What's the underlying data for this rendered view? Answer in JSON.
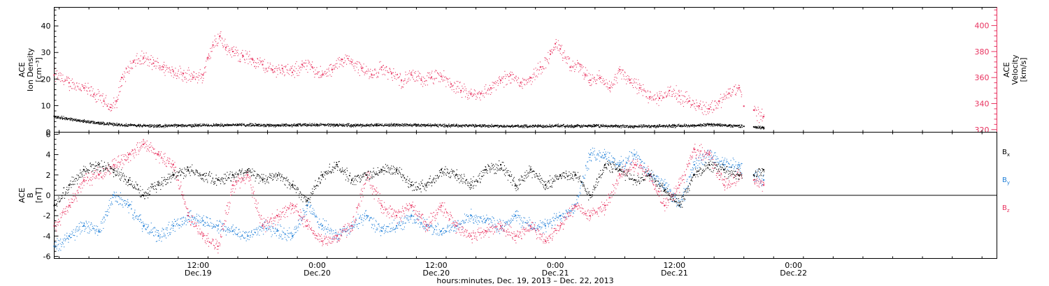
{
  "figure": {
    "xlabel": "hours:minutes, Dec. 19, 2013 – Dec. 22, 2013",
    "time_ticks": [
      {
        "hours": 12,
        "time": "12:00",
        "date": "Dec.19"
      },
      {
        "hours": 24,
        "time": "0:00",
        "date": "Dec.20"
      },
      {
        "hours": 36,
        "time": "12:00",
        "date": "Dec.20"
      },
      {
        "hours": 48,
        "time": "0:00",
        "date": "Dec.21"
      },
      {
        "hours": 60,
        "time": "12:00",
        "date": "Dec.21"
      },
      {
        "hours": 72,
        "time": "0:00",
        "date": "Dec.22"
      }
    ]
  },
  "colors": {
    "axis": "#000000",
    "density": "#000000",
    "velocity": "#e8325f",
    "bx": "#000000",
    "by": "#1f7fd8",
    "bz": "#e8325f"
  },
  "chart_data": [
    {
      "type": "scatter",
      "panel": "top",
      "ylabel_left": [
        "ACE",
        "Ion Density",
        "[cm⁻³]"
      ],
      "ylabel_right": [
        "ACE",
        "Velocity",
        "[km/s]"
      ],
      "xlim": [
        -2.5,
        92.5
      ],
      "ylim_left": [
        0,
        47
      ],
      "ylim_right": [
        318,
        414
      ],
      "yticks_left": [
        0,
        10,
        20,
        30,
        40
      ],
      "yticks_right": [
        320,
        340,
        360,
        380,
        400
      ],
      "series": [
        {
          "key": "velocity",
          "axis": "right",
          "x": [
            -2.5,
            -1,
            0.5,
            1.5,
            2.5,
            3.2,
            3.8,
            4.3,
            5.5,
            6.5,
            7.5,
            8.5,
            9.5,
            10.5,
            11.5,
            12.5,
            13,
            13.5,
            14.2,
            14.8,
            15.5,
            16.5,
            17.5,
            18.5,
            19.5,
            20.5,
            21.5,
            22.5,
            23.5,
            24.5,
            25.5,
            26.5,
            27.5,
            28.5,
            29.5,
            30.5,
            31.5,
            32.5,
            33.5,
            34.5,
            35.5,
            36.5,
            37.5,
            38.5,
            39.5,
            40.5,
            41.5,
            42.5,
            43.5,
            44.5,
            45.5,
            46.5,
            47.5,
            48,
            48.5,
            49.5,
            50.5,
            51,
            51.5,
            52.5,
            53.5,
            54.5,
            55.5,
            56.5,
            57.5,
            58.5,
            59.5,
            60.5,
            61.5,
            62.5,
            63.5,
            64.5,
            65.5,
            66.5,
            67,
            68,
            69
          ],
          "y": [
            362,
            356,
            352,
            347,
            342,
            337,
            342,
            360,
            372,
            375,
            371,
            368,
            365,
            363,
            360,
            362,
            375,
            385,
            392,
            383,
            380,
            377,
            374,
            370,
            366,
            367,
            364,
            370,
            368,
            362,
            366,
            374,
            372,
            367,
            362,
            368,
            363,
            358,
            362,
            358,
            360,
            361,
            355,
            350,
            347,
            348,
            352,
            358,
            362,
            356,
            360,
            368,
            378,
            386,
            382,
            368,
            370,
            362,
            358,
            360,
            352,
            366,
            358,
            352,
            345,
            344,
            350,
            346,
            342,
            338,
            336,
            342,
            348,
            352,
            338,
            335,
            330
          ]
        },
        {
          "key": "density",
          "axis": "left",
          "x": [
            -2.5,
            0,
            2,
            4,
            6,
            8,
            10,
            12,
            14,
            16,
            18,
            20,
            22,
            24,
            26,
            28,
            30,
            32,
            34,
            36,
            38,
            40,
            42,
            44,
            46,
            48,
            50,
            52,
            54,
            56,
            58,
            60,
            62,
            63.5,
            64.5,
            65.5,
            66.5,
            67,
            68,
            69
          ],
          "y": [
            6,
            4.5,
            3.5,
            3,
            2.6,
            2.5,
            2.6,
            2.7,
            2.8,
            2.9,
            2.8,
            2.7,
            2.8,
            2.9,
            2.8,
            2.7,
            2.8,
            2.9,
            2.8,
            2.7,
            2.6,
            2.6,
            2.5,
            2.4,
            2.4,
            2.5,
            2.4,
            2.5,
            2.4,
            2.3,
            2.4,
            2.5,
            2.6,
            3,
            2.8,
            2.6,
            2.5,
            2.2,
            2,
            1.8
          ]
        }
      ]
    },
    {
      "type": "scatter",
      "panel": "bottom",
      "ylabel_left": [
        "ACE",
        "B",
        "[nT]"
      ],
      "xlim": [
        -2.5,
        92.5
      ],
      "ylim": [
        -6.2,
        6.2
      ],
      "yticks": [
        -6,
        -4,
        -2,
        0,
        2,
        4,
        6
      ],
      "series": [
        {
          "key": "bx",
          "name": "B",
          "x": [
            -2.5,
            -1,
            0.5,
            2,
            3.5,
            5,
            6.5,
            8,
            9.5,
            11,
            12.5,
            14,
            15.5,
            17,
            18.5,
            20,
            21.5,
            23,
            24.5,
            26,
            27.5,
            29,
            30.5,
            32,
            33.5,
            35,
            36.5,
            38,
            39.5,
            41,
            42.5,
            44,
            45.5,
            47,
            48.5,
            50,
            51.5,
            53,
            54.5,
            56,
            57.5,
            59,
            60.5,
            62,
            63.5,
            65,
            66.5,
            68,
            69
          ],
          "y": [
            -1,
            1,
            2.5,
            3,
            2.5,
            1.5,
            0,
            1,
            2,
            2.5,
            2,
            1.5,
            2,
            2.5,
            1.5,
            2,
            1,
            -0.5,
            2,
            3,
            1.5,
            2,
            2.5,
            2.5,
            1,
            1,
            2.5,
            2,
            1,
            2.5,
            3,
            1,
            2.5,
            1,
            2,
            2,
            0,
            3,
            2.5,
            1.5,
            2,
            0.5,
            -1,
            2,
            3,
            2.5,
            2,
            2,
            2.5
          ]
        },
        {
          "key": "by",
          "name": "B",
          "x": [
            -2.5,
            -1,
            0.5,
            2,
            3.5,
            5,
            6.5,
            8,
            9.5,
            11,
            12.5,
            14,
            15.5,
            17,
            18.5,
            20,
            21.5,
            23,
            24.5,
            26,
            27.5,
            29,
            30.5,
            32,
            33.5,
            35,
            36.5,
            38,
            39.5,
            41,
            42.5,
            44,
            45.5,
            47,
            48.5,
            50,
            51.5,
            53,
            54.5,
            56,
            57.5,
            59,
            60.5,
            62,
            63.5,
            65,
            66.5,
            68,
            69
          ],
          "y": [
            -5,
            -4,
            -3,
            -3.5,
            0,
            -1,
            -3,
            -4,
            -3,
            -2,
            -2.5,
            -3,
            -3.5,
            -4,
            -3,
            -3.5,
            -4,
            -1,
            -3,
            -4,
            -3,
            -2,
            -3.5,
            -3,
            -2,
            -3,
            -3.5,
            -3,
            -2,
            -2.5,
            -3,
            -2,
            -3,
            -3,
            -2,
            -1,
            4,
            4,
            3,
            4,
            2,
            1,
            -1,
            3,
            4,
            3,
            3,
            2,
            1.5
          ]
        },
        {
          "key": "bz",
          "name": "B",
          "x": [
            -2.5,
            -1,
            0.5,
            2,
            3.5,
            5,
            6.5,
            8,
            9.5,
            11,
            12.5,
            14,
            15.5,
            17,
            18.5,
            20,
            21.5,
            23,
            24.5,
            26,
            27.5,
            29,
            30.5,
            32,
            33.5,
            35,
            36.5,
            38,
            39.5,
            41,
            42.5,
            44,
            45.5,
            47,
            48.5,
            50,
            51.5,
            53,
            54.5,
            56,
            57.5,
            59,
            60.5,
            62,
            63.5,
            65,
            66.5,
            68,
            69
          ],
          "y": [
            -3,
            -1,
            1.5,
            2,
            3,
            4,
            5,
            4,
            3,
            -2,
            -4,
            -5,
            1,
            2,
            -3,
            -2,
            -1,
            -3,
            -4.5,
            -4,
            -3,
            2,
            -1,
            -2,
            -1,
            -3,
            -1,
            -3,
            -4,
            -3.5,
            -3,
            -4,
            -3,
            -4.5,
            -3,
            -1,
            -2,
            -1,
            2,
            3,
            2,
            -1,
            1,
            4.5,
            4,
            1,
            2,
            1.5,
            1
          ]
        }
      ],
      "legend": {
        "labels": [
          "B",
          "B",
          "B"
        ],
        "subscripts": [
          "x",
          "y",
          "z"
        ]
      }
    }
  ]
}
